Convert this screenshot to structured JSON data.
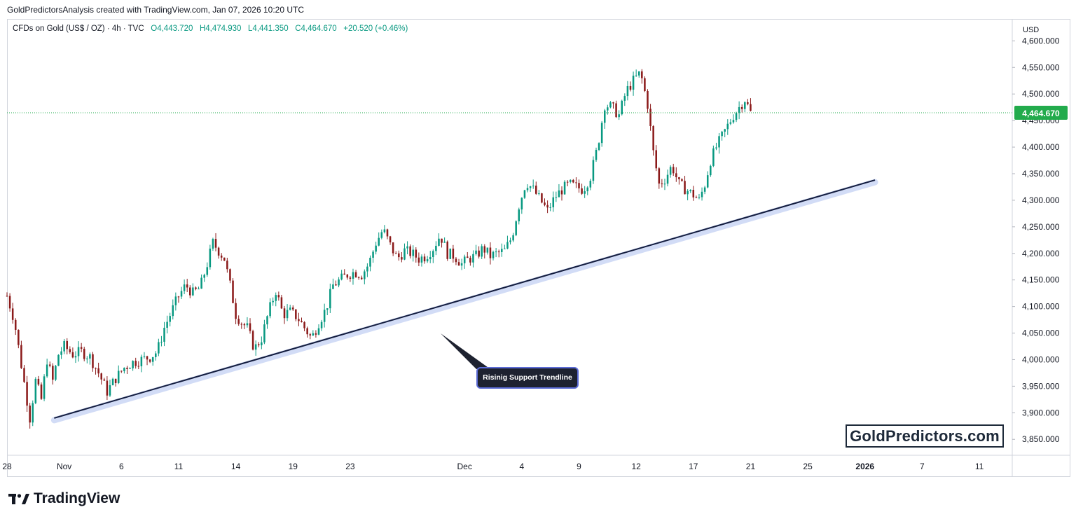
{
  "header": {
    "caption": "GoldPredictorsAnalysis created with TradingView.com, Jan 07, 2026 10:20 UTC"
  },
  "legend": {
    "symbol": "CFDs on Gold (US$ / OZ) · 4h · TVC",
    "open": "O4,443.720",
    "high": "H4,474.930",
    "low": "L4,441.350",
    "close": "C4,464.670",
    "change": "+20.520 (+0.46%)"
  },
  "axis": {
    "currency": "USD",
    "current_price": "4,464.670"
  },
  "annotation": {
    "label": "Risinig Support Trendline"
  },
  "watermark": "GoldPredictors.com",
  "footer": {
    "logo_text": "TradingView"
  },
  "colors": {
    "up": "#089981",
    "down": "#8b1a1a",
    "trendline": "#131c3d",
    "trend_glow": "#c7d4f5",
    "price_tag": "#22ab4c"
  },
  "chart_data": {
    "type": "candlestick",
    "title": "CFDs on Gold (US$ / OZ) · 4h · TVC",
    "ylabel": "USD",
    "ylim": [
      3820,
      4640
    ],
    "y_ticks": [
      3850,
      3900,
      3950,
      4000,
      4050,
      4100,
      4150,
      4200,
      4250,
      4300,
      4350,
      4400,
      4450,
      4500,
      4550,
      4600
    ],
    "y_tick_labels": [
      "3,850.000",
      "3,900.000",
      "3,950.000",
      "4,000.000",
      "4,050.000",
      "4,100.000",
      "4,150.000",
      "4,200.000",
      "4,250.000",
      "4,300.000",
      "4,350.000",
      "4,400.000",
      "4,450.000",
      "4,500.000",
      "4,550.000",
      "4,600.000"
    ],
    "x_ticks": [
      {
        "label": "28",
        "x": 0
      },
      {
        "label": "Nov",
        "x": 4
      },
      {
        "label": "6",
        "x": 8
      },
      {
        "label": "11",
        "x": 12
      },
      {
        "label": "14",
        "x": 16
      },
      {
        "label": "19",
        "x": 20
      },
      {
        "label": "23",
        "x": 24
      },
      {
        "label": "Dec",
        "x": 32
      },
      {
        "label": "4",
        "x": 36
      },
      {
        "label": "9",
        "x": 40
      },
      {
        "label": "12",
        "x": 44
      },
      {
        "label": "17",
        "x": 48
      },
      {
        "label": "21",
        "x": 52
      },
      {
        "label": "25",
        "x": 56
      },
      {
        "label": "2026",
        "x": 60,
        "bold": true
      },
      {
        "label": "7",
        "x": 64
      },
      {
        "label": "11",
        "x": 68
      }
    ],
    "x_range": [
      0,
      70.3
    ],
    "last_price": 4464.67,
    "close_path": [
      [
        0,
        4120
      ],
      [
        0.5,
        4075
      ],
      [
        1.0,
        3990
      ],
      [
        1.3,
        3940
      ],
      [
        1.6,
        3890
      ],
      [
        2.0,
        3960
      ],
      [
        2.4,
        3925
      ],
      [
        2.8,
        4000
      ],
      [
        3.2,
        3960
      ],
      [
        3.6,
        4010
      ],
      [
        4.0,
        4025
      ],
      [
        4.6,
        4010
      ],
      [
        5.2,
        4015
      ],
      [
        5.8,
        4005
      ],
      [
        6.4,
        3975
      ],
      [
        7.0,
        3940
      ],
      [
        7.6,
        3965
      ],
      [
        8.2,
        3985
      ],
      [
        8.8,
        3995
      ],
      [
        9.4,
        4000
      ],
      [
        10.0,
        4005
      ],
      [
        10.5,
        4015
      ],
      [
        11.0,
        4060
      ],
      [
        11.5,
        4090
      ],
      [
        12.0,
        4120
      ],
      [
        12.5,
        4140
      ],
      [
        13.0,
        4125
      ],
      [
        13.5,
        4135
      ],
      [
        14.0,
        4180
      ],
      [
        14.4,
        4220
      ],
      [
        14.8,
        4205
      ],
      [
        15.2,
        4190
      ],
      [
        15.6,
        4140
      ],
      [
        16.0,
        4085
      ],
      [
        16.4,
        4070
      ],
      [
        16.8,
        4060
      ],
      [
        17.3,
        4020
      ],
      [
        17.8,
        4040
      ],
      [
        18.3,
        4090
      ],
      [
        18.8,
        4130
      ],
      [
        19.3,
        4085
      ],
      [
        19.8,
        4090
      ],
      [
        20.3,
        4080
      ],
      [
        20.8,
        4060
      ],
      [
        21.3,
        4040
      ],
      [
        21.8,
        4070
      ],
      [
        22.3,
        4095
      ],
      [
        22.8,
        4140
      ],
      [
        23.3,
        4150
      ],
      [
        23.8,
        4160
      ],
      [
        24.3,
        4165
      ],
      [
        24.8,
        4160
      ],
      [
        25.3,
        4180
      ],
      [
        25.8,
        4220
      ],
      [
        26.3,
        4245
      ],
      [
        26.8,
        4215
      ],
      [
        27.3,
        4190
      ],
      [
        27.8,
        4205
      ],
      [
        28.3,
        4200
      ],
      [
        28.8,
        4190
      ],
      [
        29.3,
        4195
      ],
      [
        29.8,
        4210
      ],
      [
        30.3,
        4235
      ],
      [
        30.8,
        4200
      ],
      [
        31.3,
        4195
      ],
      [
        31.8,
        4180
      ],
      [
        32.3,
        4190
      ],
      [
        32.8,
        4195
      ],
      [
        33.3,
        4210
      ],
      [
        33.8,
        4195
      ],
      [
        34.3,
        4200
      ],
      [
        34.8,
        4205
      ],
      [
        35.3,
        4230
      ],
      [
        35.8,
        4290
      ],
      [
        36.3,
        4335
      ],
      [
        36.8,
        4320
      ],
      [
        37.3,
        4300
      ],
      [
        37.8,
        4280
      ],
      [
        38.3,
        4305
      ],
      [
        38.8,
        4320
      ],
      [
        39.3,
        4330
      ],
      [
        39.8,
        4325
      ],
      [
        40.3,
        4320
      ],
      [
        40.8,
        4345
      ],
      [
        41.3,
        4400
      ],
      [
        41.8,
        4480
      ],
      [
        42.3,
        4475
      ],
      [
        42.8,
        4460
      ],
      [
        43.3,
        4505
      ],
      [
        43.8,
        4525
      ],
      [
        44.3,
        4540
      ],
      [
        44.8,
        4480
      ],
      [
        45.2,
        4390
      ],
      [
        45.6,
        4330
      ],
      [
        46.0,
        4340
      ],
      [
        46.5,
        4365
      ],
      [
        47.0,
        4330
      ],
      [
        47.5,
        4320
      ],
      [
        48.0,
        4310
      ],
      [
        48.4,
        4300
      ],
      [
        48.8,
        4330
      ],
      [
        49.2,
        4375
      ],
      [
        49.6,
        4400
      ],
      [
        50.0,
        4420
      ],
      [
        50.4,
        4440
      ],
      [
        50.8,
        4460
      ],
      [
        51.2,
        4475
      ],
      [
        51.6,
        4490
      ],
      [
        52.0,
        4465
      ]
    ],
    "trendline": {
      "label": "Risinig Support Trendline",
      "from": [
        3.3,
        3890
      ],
      "to": [
        60.7,
        4338
      ]
    }
  }
}
